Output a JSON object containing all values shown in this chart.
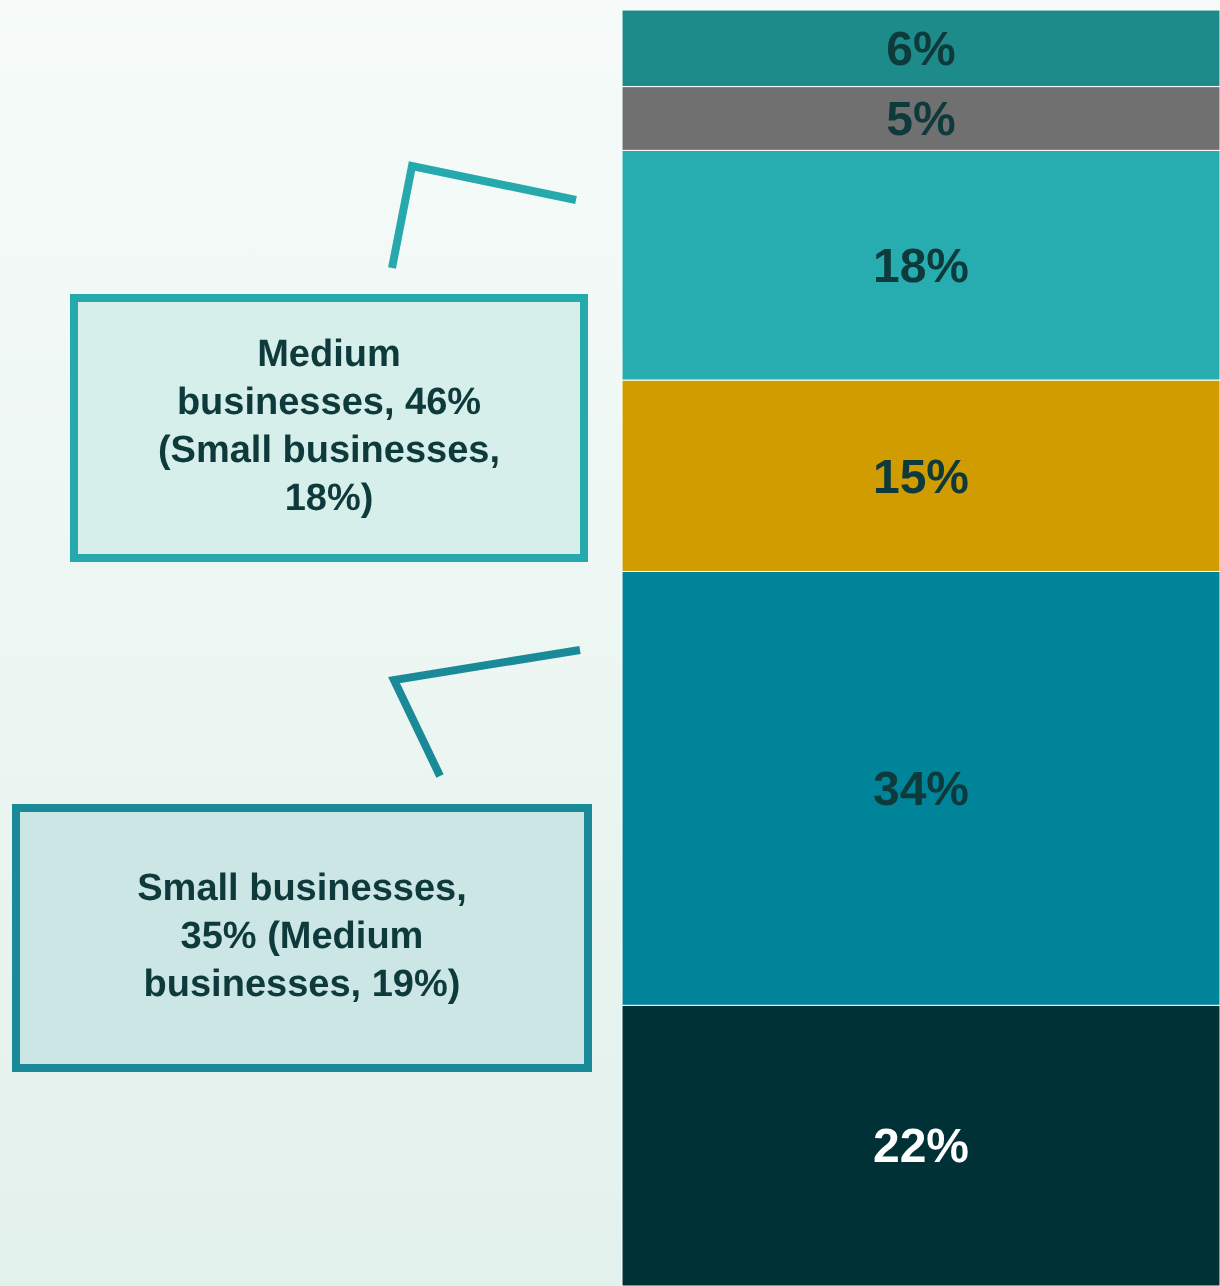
{
  "chart_data": {
    "type": "bar",
    "stacked": true,
    "categories": [
      null
    ],
    "series": [
      {
        "color": "#003136",
        "values": [
          22
        ],
        "value_labels": [
          "22%"
        ]
      },
      {
        "color": "#00849a",
        "values": [
          34
        ],
        "value_labels": [
          "34%"
        ]
      },
      {
        "color": "#d19c00",
        "values": [
          15
        ],
        "value_labels": [
          "15%"
        ]
      },
      {
        "color": "#27adb0",
        "values": [
          18
        ],
        "value_labels": [
          "18%"
        ]
      },
      {
        "color": "#707070",
        "values": [
          5
        ],
        "value_labels": [
          "5%"
        ]
      },
      {
        "color": "#1e8b8b",
        "values": [
          6
        ],
        "value_labels": [
          "6%"
        ]
      }
    ],
    "annotations": [
      "Medium businesses, 46% (Small businesses, 18%)",
      "Small businesses, 35% (Medium businesses, 19%)"
    ]
  }
}
